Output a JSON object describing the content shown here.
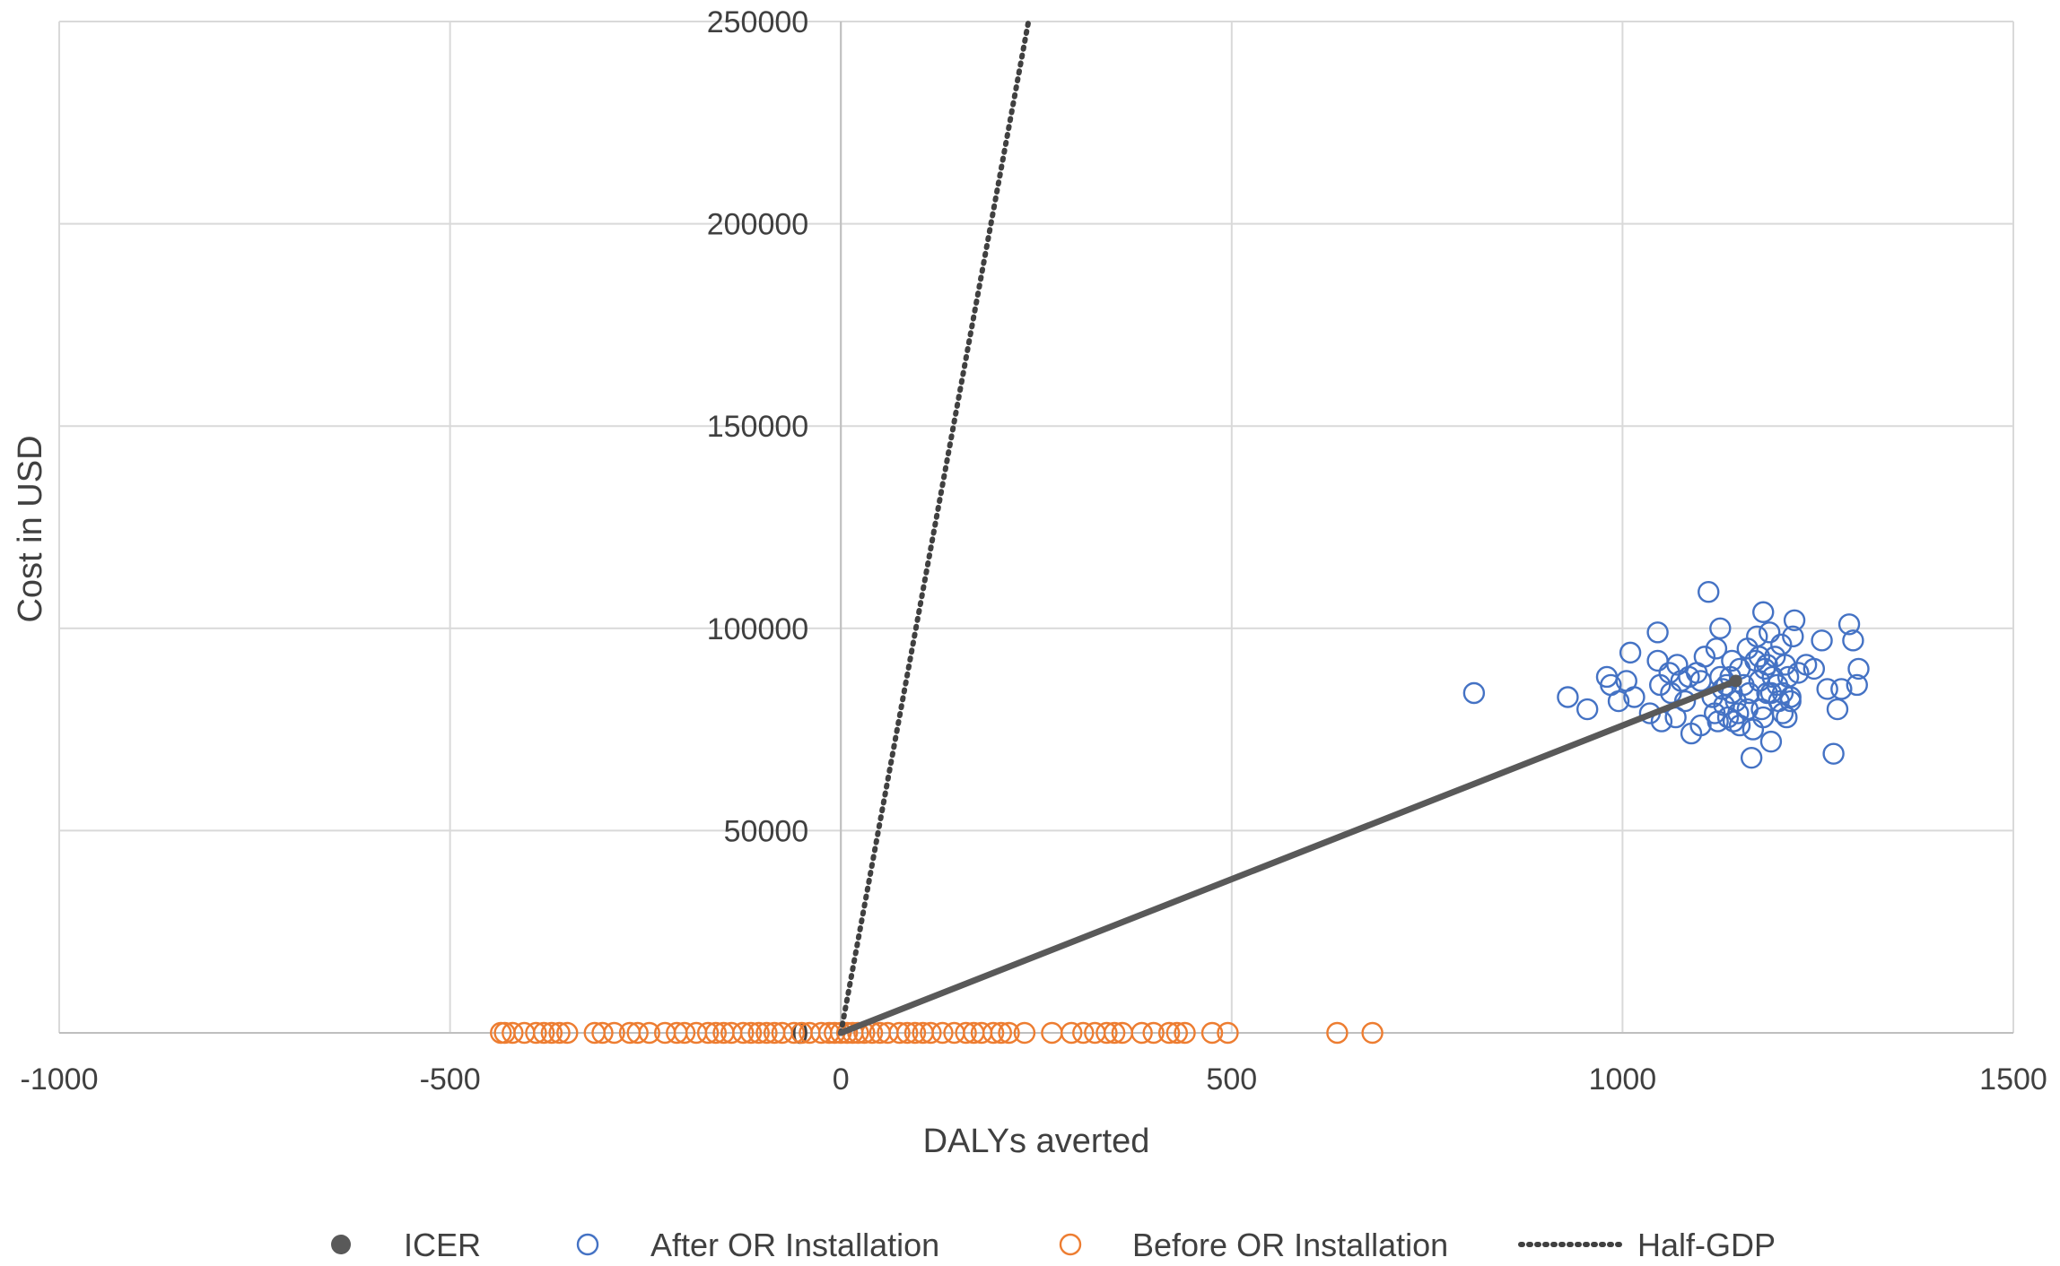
{
  "chart_data": {
    "type": "scatter",
    "title": "",
    "xlabel": "DALYs averted",
    "ylabel": "Cost in USD",
    "xlim": [
      -1000,
      1500
    ],
    "ylim": [
      0,
      250000
    ],
    "x_ticks": [
      -1000,
      -500,
      0,
      500,
      1000,
      1500
    ],
    "y_ticks": [
      0,
      50000,
      100000,
      150000,
      200000,
      250000
    ],
    "x_tick_labels": [
      "-1000",
      "-500",
      "0",
      "500",
      "1000",
      "1500"
    ],
    "y_tick_labels": [
      "0",
      "50000",
      "100000",
      "150000",
      "200000",
      "250000"
    ],
    "grid": true,
    "legend_position": "bottom",
    "colors": {
      "icer": "#595959",
      "after": "#4472C4",
      "before": "#ED7D31",
      "half_gdp": "#404040",
      "grid": "#d9d9d9"
    },
    "series": [
      {
        "name": "ICER",
        "kind": "line-solid",
        "points": [
          [
            0,
            0
          ],
          [
            1145,
            87000
          ]
        ]
      },
      {
        "name": "After OR Installation",
        "kind": "open-circle",
        "points": [
          [
            810,
            84000
          ],
          [
            930,
            83000
          ],
          [
            955,
            80000
          ],
          [
            980,
            88000
          ],
          [
            985,
            86000
          ],
          [
            995,
            82000
          ],
          [
            1005,
            87000
          ],
          [
            1010,
            94000
          ],
          [
            1015,
            83000
          ],
          [
            1035,
            79000
          ],
          [
            1045,
            99000
          ],
          [
            1045,
            92000
          ],
          [
            1048,
            86000
          ],
          [
            1050,
            77000
          ],
          [
            1060,
            89000
          ],
          [
            1062,
            84000
          ],
          [
            1068,
            78000
          ],
          [
            1070,
            91000
          ],
          [
            1075,
            87000
          ],
          [
            1080,
            82000
          ],
          [
            1085,
            88000
          ],
          [
            1088,
            74000
          ],
          [
            1095,
            89000
          ],
          [
            1100,
            87000
          ],
          [
            1105,
            93000
          ],
          [
            1110,
            109000
          ],
          [
            1115,
            83000
          ],
          [
            1118,
            79000
          ],
          [
            1120,
            95000
          ],
          [
            1122,
            77000
          ],
          [
            1125,
            100000
          ],
          [
            1128,
            85000
          ],
          [
            1130,
            81000
          ],
          [
            1133,
            86000
          ],
          [
            1135,
            78000
          ],
          [
            1138,
            88000
          ],
          [
            1140,
            84000
          ],
          [
            1142,
            77000
          ],
          [
            1145,
            82000
          ],
          [
            1148,
            79000
          ],
          [
            1150,
            90000
          ],
          [
            1155,
            86000
          ],
          [
            1160,
            95000
          ],
          [
            1162,
            84000
          ],
          [
            1165,
            68000
          ],
          [
            1167,
            75000
          ],
          [
            1170,
            92000
          ],
          [
            1172,
            98000
          ],
          [
            1175,
            87000
          ],
          [
            1178,
            80000
          ],
          [
            1180,
            104000
          ],
          [
            1180,
            78000
          ],
          [
            1182,
            90000
          ],
          [
            1185,
            84000
          ],
          [
            1188,
            99000
          ],
          [
            1190,
            72000
          ],
          [
            1192,
            88000
          ],
          [
            1195,
            93000
          ],
          [
            1198,
            86000
          ],
          [
            1200,
            82000
          ],
          [
            1203,
            96000
          ],
          [
            1205,
            84000
          ],
          [
            1208,
            91000
          ],
          [
            1210,
            78000
          ],
          [
            1212,
            88000
          ],
          [
            1215,
            83000
          ],
          [
            1218,
            98000
          ],
          [
            1220,
            102000
          ],
          [
            1225,
            89000
          ],
          [
            1235,
            91000
          ],
          [
            1245,
            90000
          ],
          [
            1255,
            97000
          ],
          [
            1262,
            85000
          ],
          [
            1270,
            69000
          ],
          [
            1275,
            80000
          ],
          [
            1280,
            85000
          ],
          [
            1290,
            101000
          ],
          [
            1295,
            97000
          ],
          [
            1300,
            86000
          ],
          [
            1302,
            90000
          ],
          [
            1190,
            84000
          ],
          [
            1175,
            93000
          ],
          [
            1160,
            80000
          ],
          [
            1205,
            79000
          ],
          [
            1150,
            76000
          ],
          [
            1125,
            88000
          ],
          [
            1100,
            76000
          ],
          [
            1215,
            82000
          ],
          [
            1185,
            91000
          ],
          [
            1140,
            92000
          ]
        ]
      },
      {
        "name": "Before OR Installation",
        "kind": "open-circle",
        "points": [
          [
            -435,
            0
          ],
          [
            -430,
            0
          ],
          [
            -420,
            0
          ],
          [
            -405,
            0
          ],
          [
            -390,
            0
          ],
          [
            -380,
            0
          ],
          [
            -370,
            0
          ],
          [
            -360,
            0
          ],
          [
            -350,
            0
          ],
          [
            -315,
            0
          ],
          [
            -305,
            0
          ],
          [
            -290,
            0
          ],
          [
            -270,
            0
          ],
          [
            -260,
            0
          ],
          [
            -245,
            0
          ],
          [
            -225,
            0
          ],
          [
            -210,
            0
          ],
          [
            -200,
            0
          ],
          [
            -185,
            0
          ],
          [
            -170,
            0
          ],
          [
            -160,
            0
          ],
          [
            -150,
            0
          ],
          [
            -140,
            0
          ],
          [
            -125,
            0
          ],
          [
            -115,
            0
          ],
          [
            -105,
            0
          ],
          [
            -95,
            0
          ],
          [
            -85,
            0
          ],
          [
            -75,
            0
          ],
          [
            -60,
            0
          ],
          [
            -50,
            0
          ],
          [
            -40,
            0
          ],
          [
            -25,
            0
          ],
          [
            -15,
            0
          ],
          [
            -8,
            0
          ],
          [
            0,
            0
          ],
          [
            8,
            0
          ],
          [
            15,
            0
          ],
          [
            22,
            0
          ],
          [
            30,
            0
          ],
          [
            40,
            0
          ],
          [
            50,
            0
          ],
          [
            60,
            0
          ],
          [
            75,
            0
          ],
          [
            85,
            0
          ],
          [
            95,
            0
          ],
          [
            105,
            0
          ],
          [
            115,
            0
          ],
          [
            130,
            0
          ],
          [
            145,
            0
          ],
          [
            160,
            0
          ],
          [
            170,
            0
          ],
          [
            180,
            0
          ],
          [
            195,
            0
          ],
          [
            205,
            0
          ],
          [
            215,
            0
          ],
          [
            235,
            0
          ],
          [
            270,
            0
          ],
          [
            295,
            0
          ],
          [
            310,
            0
          ],
          [
            325,
            0
          ],
          [
            340,
            0
          ],
          [
            350,
            0
          ],
          [
            360,
            0
          ],
          [
            385,
            0
          ],
          [
            400,
            0
          ],
          [
            420,
            0
          ],
          [
            430,
            0
          ],
          [
            440,
            0
          ],
          [
            475,
            0
          ],
          [
            495,
            0
          ],
          [
            635,
            0
          ],
          [
            680,
            0
          ]
        ]
      },
      {
        "name": "Half-GDP",
        "kind": "line-dotted",
        "points": [
          [
            0,
            0
          ],
          [
            240,
            250000
          ]
        ]
      }
    ]
  },
  "legend": {
    "items": [
      {
        "label": "ICER",
        "marker": "filled-circle"
      },
      {
        "label": "After OR Installation",
        "marker": "open-circle"
      },
      {
        "label": "Before OR Installation",
        "marker": "open-circle"
      },
      {
        "label": "Half-GDP",
        "marker": "dotted-line"
      }
    ]
  }
}
